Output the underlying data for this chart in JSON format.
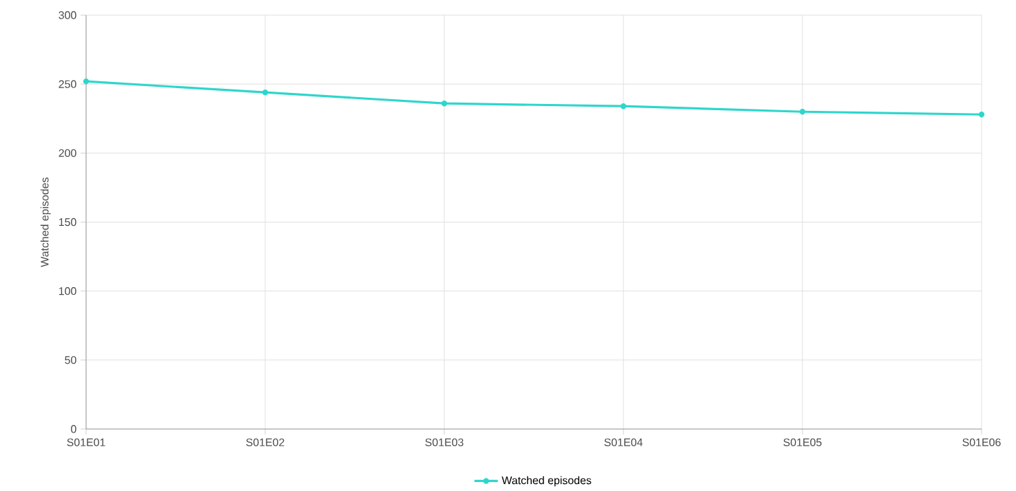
{
  "chart_data": {
    "type": "line",
    "ylabel": "Watched episodes",
    "categories": [
      "S01E01",
      "S01E02",
      "S01E03",
      "S01E04",
      "S01E05",
      "S01E06"
    ],
    "series": [
      {
        "name": "Watched episodes",
        "color": "#2ed6cc",
        "values": [
          252,
          244,
          236,
          234,
          230,
          228
        ]
      }
    ],
    "ylim": [
      0,
      300
    ],
    "yticks": [
      0,
      50,
      100,
      150,
      200,
      250,
      300
    ],
    "grid": true,
    "legend": "bottom",
    "marker": "circle",
    "line_style": "solid"
  }
}
